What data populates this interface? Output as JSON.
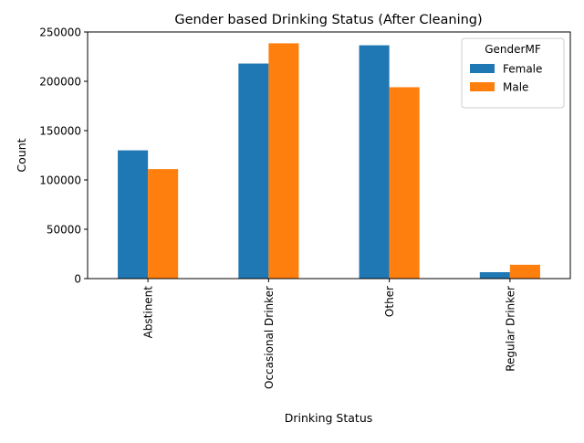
{
  "chart_data": {
    "type": "bar",
    "title": "Gender based Drinking Status (After Cleaning)",
    "xlabel": "Drinking Status",
    "ylabel": "Count",
    "categories": [
      "Abstinent",
      "Occasional Drinker",
      "Other",
      "Regular Drinker"
    ],
    "series": [
      {
        "name": "Female",
        "color": "#1f77b4",
        "values": [
          130000,
          218000,
          236500,
          6500
        ]
      },
      {
        "name": "Male",
        "color": "#ff7f0e",
        "values": [
          111000,
          238500,
          194000,
          14000
        ]
      }
    ],
    "ylim": [
      0,
      250000
    ],
    "yticks": [
      0,
      50000,
      100000,
      150000,
      200000,
      250000
    ],
    "ytick_labels": [
      "0",
      "50000",
      "100000",
      "150000",
      "200000",
      "250000"
    ],
    "grid": false,
    "x_tick_rotation": "vertical",
    "legend": {
      "title": "GenderMF",
      "placement": "top-right"
    }
  }
}
